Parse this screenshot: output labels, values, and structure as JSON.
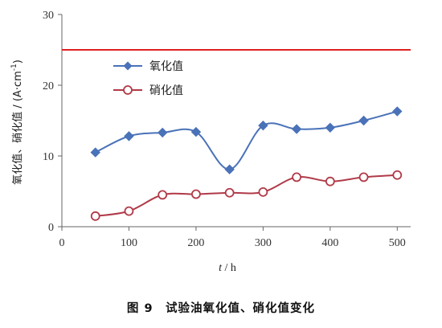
{
  "chart_data": {
    "type": "line",
    "x": [
      50,
      100,
      150,
      200,
      250,
      300,
      350,
      400,
      450,
      500
    ],
    "series": [
      {
        "name": "氧化值",
        "color": "#4a72b8",
        "marker": "diamond",
        "values": [
          10.5,
          12.8,
          13.3,
          13.4,
          8.1,
          14.3,
          13.8,
          14.0,
          15.0,
          16.3
        ]
      },
      {
        "name": "硝化值",
        "color": "#b03a48",
        "marker": "circle",
        "values": [
          1.5,
          2.2,
          4.5,
          4.6,
          4.8,
          4.9,
          7.0,
          6.4,
          7.0,
          7.3
        ]
      }
    ],
    "reference_line": {
      "y": 25,
      "color": "#e02020"
    },
    "xlim": [
      0,
      520
    ],
    "ylim": [
      0,
      30
    ],
    "xticks": [
      "0",
      "100",
      "200",
      "300",
      "400",
      "500"
    ],
    "yticks": [
      "0",
      "10",
      "20",
      "30"
    ],
    "xlabel": {
      "var": "t",
      "unit": " / h"
    },
    "ylabel": {
      "text": "氧化值、硝化值 / (A·cm",
      "exp": "-1",
      "close": ")"
    },
    "legend_position": "upper-left",
    "grid": false
  },
  "caption": "图 9　试验油氧化值、硝化值变化"
}
